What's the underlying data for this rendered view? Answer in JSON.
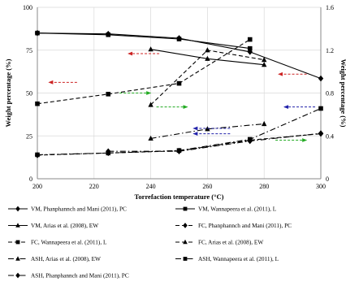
{
  "chart_data": {
    "type": "line",
    "xlabel": "Torrefaction  temperature  (°C)",
    "ylabel_left": "Weight percentage (%)",
    "ylabel_right": "Weight percentage (%)",
    "xlim": [
      200,
      300
    ],
    "ylim_left": [
      0,
      100
    ],
    "ylim_right": [
      0,
      1.6
    ],
    "x_ticks": [
      200,
      220,
      240,
      260,
      280,
      300
    ],
    "y_ticks_left": [
      "0",
      "25",
      "50",
      "75",
      "100"
    ],
    "y_ticks_right": [
      "0",
      "0.4",
      "0.8",
      "1.2",
      "1.6"
    ],
    "grid": true,
    "series": [
      {
        "name": "VM, Phanphannch and Mani (2011), PC",
        "axis": "left",
        "style": "solid",
        "marker": "diamond",
        "x": [
          200,
          225,
          250,
          275,
          300
        ],
        "y": [
          85,
          84.5,
          82,
          74,
          58.5
        ]
      },
      {
        "name": "VM, Wannapeera et al. (2011), L",
        "axis": "left",
        "style": "solid",
        "marker": "square",
        "x": [
          200,
          225,
          250,
          275
        ],
        "y": [
          85,
          84,
          81.5,
          76
        ]
      },
      {
        "name": "VM, Arias et al. (2008), EW",
        "axis": "left",
        "style": "solid",
        "marker": "triangle",
        "x": [
          240,
          260,
          280
        ],
        "y": [
          75.5,
          70,
          66.5
        ]
      },
      {
        "name": "FC, Phanphannch and Mani (2011), PC",
        "axis": "right",
        "style": "dash",
        "marker": "diamond",
        "x": [
          200,
          225,
          250,
          275,
          300
        ],
        "y": [
          0.22,
          0.24,
          0.26,
          0.36,
          0.42
        ]
      },
      {
        "name": "FC, Wannapeera et al. (2011), L",
        "axis": "right",
        "style": "dash",
        "marker": "square",
        "x": [
          200,
          225,
          250,
          275
        ],
        "y": [
          0.7,
          0.79,
          0.89,
          1.3
        ]
      },
      {
        "name": "FC, Arias et al. (2008), EW",
        "axis": "right",
        "style": "dash",
        "marker": "triangle",
        "x": [
          240,
          260,
          280
        ],
        "y": [
          0.69,
          1.2,
          1.11
        ]
      },
      {
        "name": "ASH, Arias et al. (2008), EW",
        "axis": "left",
        "style": "dashdot",
        "marker": "triangle",
        "x": [
          240,
          260,
          280
        ],
        "y": [
          23.5,
          29,
          32
        ]
      },
      {
        "name": "ASH, Wannapeera et al. (2011), L",
        "axis": "left",
        "style": "dashdot",
        "marker": "square",
        "x": [
          200,
          225,
          250,
          275,
          300
        ],
        "y": [
          14,
          15,
          16.5,
          23,
          41
        ]
      },
      {
        "name": "ASH, Phanphannch and Mani (2011), PC",
        "axis": "left",
        "style": "dashdot",
        "marker": "diamond",
        "x": [
          225,
          250,
          275,
          300
        ],
        "y": [
          16,
          16,
          22,
          26.5
        ]
      }
    ],
    "annotations": [
      {
        "kind": "arrow",
        "color": "#cc2222",
        "direction": "left",
        "x1": 214,
        "x2": 204,
        "y": 0.9,
        "axis": "right"
      },
      {
        "kind": "arrow",
        "color": "#cc2222",
        "direction": "left",
        "x1": 243,
        "x2": 232,
        "y": 73,
        "axis": "left"
      },
      {
        "kind": "arrow",
        "color": "#cc2222",
        "direction": "left",
        "x1": 295,
        "x2": 285,
        "y": 61,
        "axis": "left"
      },
      {
        "kind": "arrow",
        "color": "#22aa22",
        "direction": "right",
        "x1": 229,
        "x2": 240,
        "y": 0.8,
        "axis": "right"
      },
      {
        "kind": "arrow",
        "color": "#22aa22",
        "direction": "right",
        "x1": 242,
        "x2": 253,
        "y": 0.67,
        "axis": "right"
      },
      {
        "kind": "arrow",
        "color": "#22aa22",
        "direction": "right",
        "x1": 284,
        "x2": 295,
        "y": 0.36,
        "axis": "right"
      },
      {
        "kind": "arrow",
        "color": "#2222aa",
        "direction": "left",
        "x1": 298,
        "x2": 287,
        "y": 0.67,
        "axis": "right"
      },
      {
        "kind": "arrow",
        "color": "#2222aa",
        "direction": "left",
        "x1": 268,
        "x2": 255,
        "y": 0.47,
        "axis": "right"
      },
      {
        "kind": "arrow",
        "color": "#2222aa",
        "direction": "left",
        "x1": 268,
        "x2": 255,
        "y": 0.42,
        "axis": "right"
      }
    ]
  }
}
